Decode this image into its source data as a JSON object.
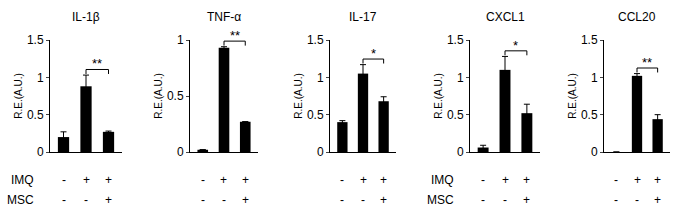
{
  "chart_data": [
    {
      "type": "bar",
      "title": "IL-1β",
      "y_label": "R.E.(A.U.)",
      "categories": [
        null,
        null,
        null
      ],
      "values": [
        0.2,
        0.88,
        0.27
      ],
      "errors": [
        0.07,
        0.15,
        0.01
      ],
      "color": "#000000",
      "ylim": [
        0,
        1.5
      ],
      "yticks": [
        0,
        0.5,
        1,
        1.5
      ],
      "tick_labels": "y",
      "significance": {
        "between": [
          1,
          2
        ],
        "label": "**"
      },
      "conditions": [
        {
          "name": "IMQ",
          "signs": [
            "-",
            "+",
            "+"
          ]
        },
        {
          "name": "MSC",
          "signs": [
            "-",
            "-",
            "+"
          ]
        }
      ]
    },
    {
      "type": "bar",
      "title": "TNF-α",
      "y_label": "R.E.(A.U.)",
      "categories": [
        null,
        null,
        null
      ],
      "values": [
        0.02,
        0.93,
        0.27
      ],
      "errors": [
        0.0,
        0.01,
        0.0
      ],
      "color": "#000000",
      "ylim": [
        0,
        1
      ],
      "yticks": [
        0,
        0.5,
        1
      ],
      "tick_labels": "y",
      "significance": {
        "between": [
          1,
          2
        ],
        "label": "**"
      },
      "conditions": [
        {
          "signs": [
            "-",
            "+",
            "+"
          ]
        },
        {
          "signs": [
            "-",
            "-",
            "+"
          ]
        }
      ]
    },
    {
      "type": "bar",
      "title": "IL-17",
      "y_label": "R.E.(A.U.)",
      "categories": [
        null,
        null,
        null
      ],
      "values": [
        0.4,
        1.05,
        0.68
      ],
      "errors": [
        0.02,
        0.12,
        0.06
      ],
      "color": "#000000",
      "ylim": [
        0,
        1.5
      ],
      "yticks": [
        0,
        0.5,
        1,
        1.5
      ],
      "tick_labels": "y",
      "significance": {
        "between": [
          1,
          2
        ],
        "label": "*"
      },
      "conditions": [
        {
          "signs": [
            "-",
            "+",
            "+"
          ]
        },
        {
          "signs": [
            "-",
            "-",
            "+"
          ]
        }
      ]
    },
    {
      "type": "bar",
      "title": "CXCL1",
      "y_label": "R.E.(A.U.)",
      "categories": [
        null,
        null,
        null
      ],
      "values": [
        0.06,
        1.1,
        0.52
      ],
      "errors": [
        0.03,
        0.18,
        0.12
      ],
      "color": "#000000",
      "ylim": [
        0,
        1.5
      ],
      "yticks": [
        0,
        0.5,
        1,
        1.5
      ],
      "tick_labels": "y",
      "significance": {
        "between": [
          1,
          2
        ],
        "label": "*"
      },
      "conditions": [
        {
          "name": "IMQ",
          "signs": [
            "-",
            "+",
            "+"
          ]
        },
        {
          "name": "MSC",
          "signs": [
            "-",
            "-",
            "+"
          ]
        }
      ]
    },
    {
      "type": "bar",
      "title": "CCL20",
      "y_label": "R.E.(A.U.)",
      "categories": [
        null,
        null,
        null
      ],
      "values": [
        0,
        1.02,
        0.44
      ],
      "errors": [
        0,
        0.03,
        0.06
      ],
      "color": "#000000",
      "ylim": [
        0,
        1.5
      ],
      "yticks": [
        0,
        0.5,
        1,
        1.5
      ],
      "tick_labels": "y",
      "significance": {
        "between": [
          1,
          2
        ],
        "label": "**"
      },
      "conditions": [
        {
          "signs": [
            "-",
            "+",
            "+"
          ]
        },
        {
          "signs": [
            "-",
            "-",
            "+"
          ]
        }
      ]
    }
  ]
}
